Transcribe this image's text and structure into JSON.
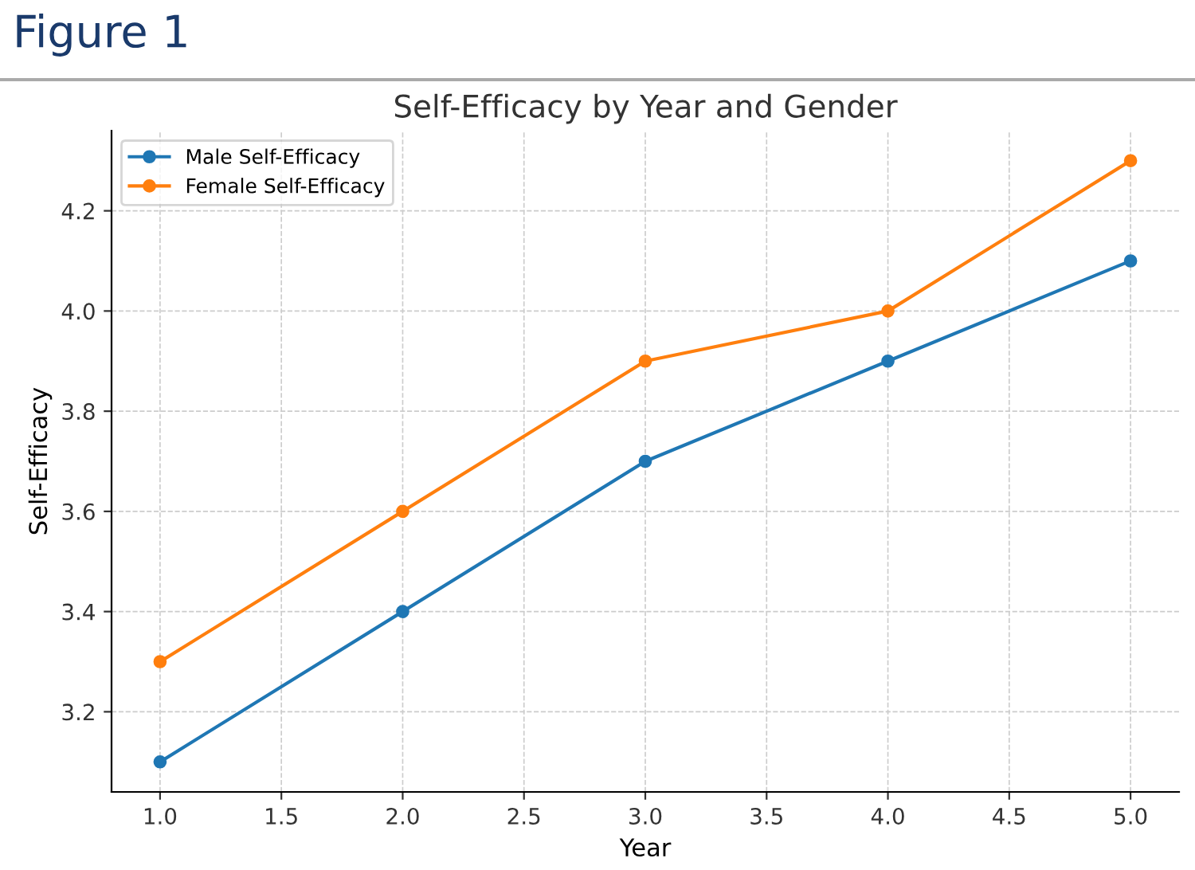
{
  "chart_data": {
    "type": "line",
    "title": "Self-Efficacy by Year and Gender",
    "xlabel": "Year",
    "ylabel": "Self-Efficacy",
    "annotations": [
      "Figure 1"
    ],
    "x": [
      1,
      2,
      3,
      4,
      5
    ],
    "series": [
      {
        "name": "Male Self-Efficacy",
        "color": "#1f77b4",
        "values": [
          3.1,
          3.4,
          3.7,
          3.9,
          4.1
        ]
      },
      {
        "name": "Female Self-Efficacy",
        "color": "#ff7f0e",
        "values": [
          3.3,
          3.6,
          3.9,
          4.0,
          4.3
        ]
      }
    ],
    "xlim": [
      0.8,
      5.2
    ],
    "xticks": [
      {
        "value": 1,
        "label": "1.0"
      },
      {
        "value": 1.5,
        "label": "1.5"
      },
      {
        "value": 2,
        "label": "2.0"
      },
      {
        "value": 2.5,
        "label": "2.5"
      },
      {
        "value": 3,
        "label": "3.0"
      },
      {
        "value": 3.5,
        "label": "3.5"
      },
      {
        "value": 4,
        "label": "4.0"
      },
      {
        "value": 4.5,
        "label": "4.5"
      },
      {
        "value": 5,
        "label": "5.0"
      }
    ],
    "ylim": [
      3.04,
      4.36
    ],
    "yticks": [
      3.2,
      3.4,
      3.6,
      3.8,
      {
        "value": 4,
        "label": "4.0"
      },
      4.2
    ],
    "grid": true,
    "legend": "top left",
    "marker": "circle",
    "line_style": "solid"
  }
}
